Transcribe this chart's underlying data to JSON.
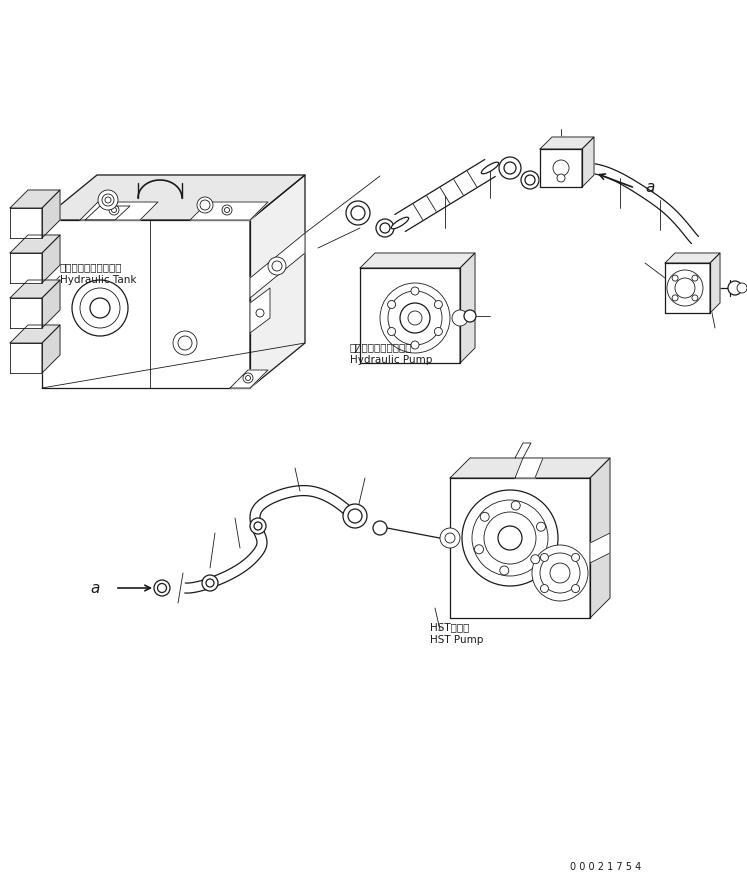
{
  "bg_color": "#ffffff",
  "line_color": "#1a1a1a",
  "fig_width": 7.47,
  "fig_height": 8.88,
  "dpi": 100,
  "label_hydraulic_tank_jp": "ハイドロリックタンク",
  "label_hydraulic_tank_en": "Hydraulic Tank",
  "label_hydraulic_pump_jp": "ハイドロリックポンプ",
  "label_hydraulic_pump_en": "Hydraulic Pump",
  "label_hst_pump_jp": "HSTポンプ",
  "label_hst_pump_en": "HST Pump",
  "label_a": "a",
  "serial_number": "0 0 0 2 1 7 5 4"
}
